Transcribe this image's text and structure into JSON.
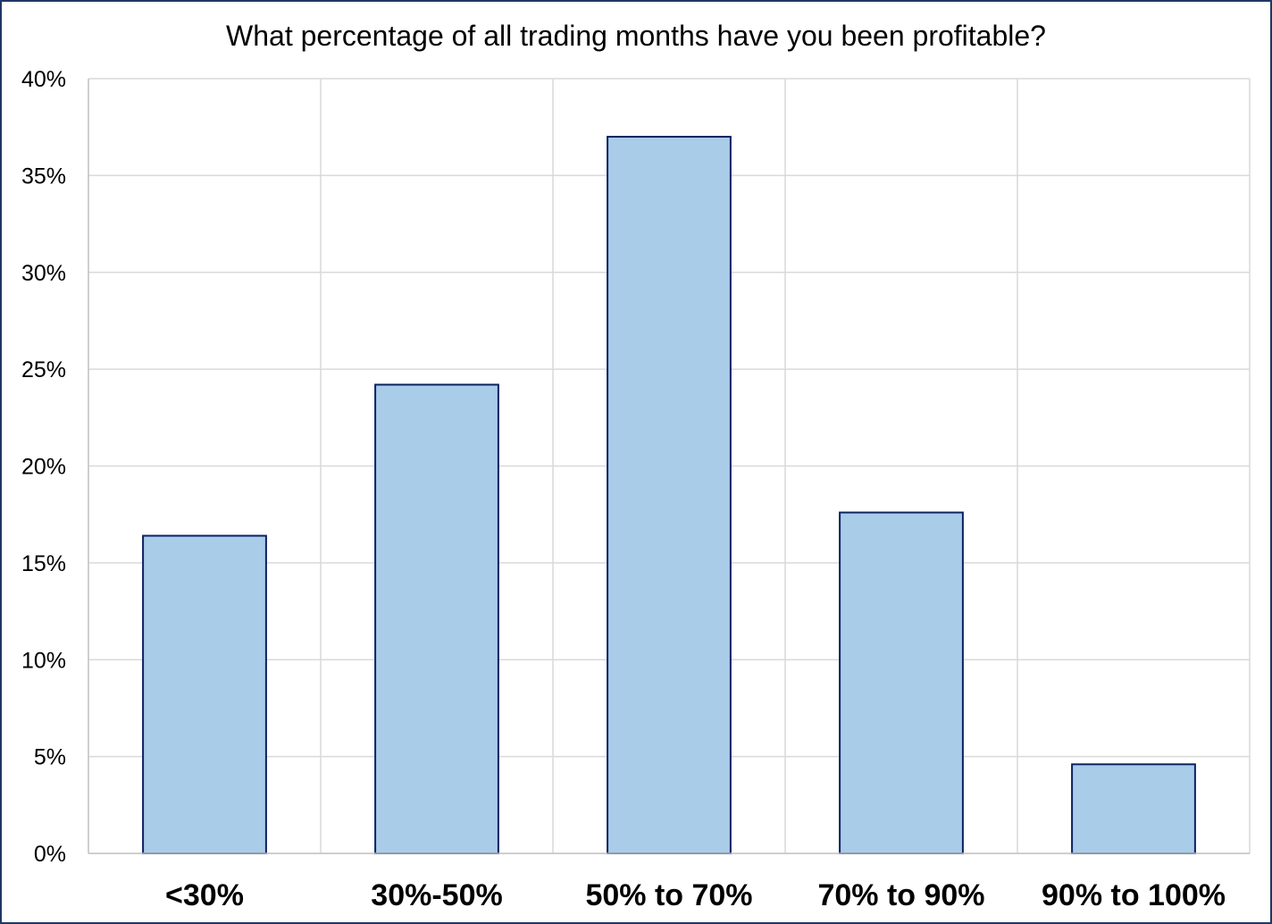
{
  "chart_data": {
    "type": "bar",
    "title": "What percentage of all trading months have you been profitable?",
    "xlabel": "",
    "ylabel": "",
    "categories": [
      "<30%",
      "30%-50%",
      "50% to 70%",
      "70% to 90%",
      "90% to 100%"
    ],
    "values": [
      16.4,
      24.2,
      37.0,
      17.6,
      4.6
    ],
    "ylim": [
      0,
      40
    ],
    "yticks": [
      0,
      5,
      10,
      15,
      20,
      25,
      30,
      35,
      40
    ],
    "ytick_labels": [
      "0%",
      "5%",
      "10%",
      "15%",
      "20%",
      "25%",
      "30%",
      "35%",
      "40%"
    ],
    "grid": true,
    "legend": "none",
    "colors": {
      "bar_fill": "#a9cce9",
      "bar_stroke": "#0b2163",
      "grid": "#d9d9d9",
      "frame": "#1f3864"
    }
  }
}
